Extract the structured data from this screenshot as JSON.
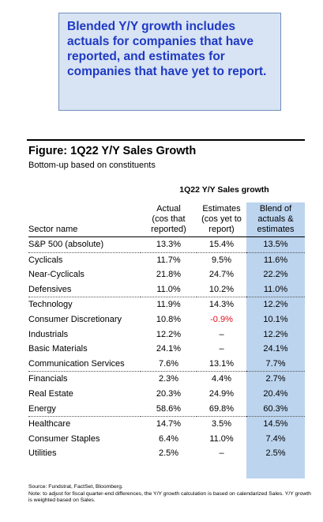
{
  "callout": {
    "text": "Blended Y/Y growth includes actuals for companies that have reported, and estimates for companies that have yet to report."
  },
  "figure": {
    "title": "Figure: 1Q22 Y/Y Sales Growth",
    "subtitle": "Bottom-up based on constituents"
  },
  "table": {
    "group_header": "1Q22 Y/Y Sales growth",
    "columns": {
      "sector": "Sector name",
      "actual": [
        "Actual",
        "(cos that",
        "reported)"
      ],
      "estimates": [
        "Estimates",
        "(cos yet to",
        "report)"
      ],
      "blend": [
        "Blend of",
        "actuals &",
        "estimates"
      ]
    },
    "rows": [
      {
        "name": "S&P 500 (absolute)",
        "actual": "13.3%",
        "estimates": "15.4%",
        "blend": "13.5%"
      },
      {
        "name": "Cyclicals",
        "actual": "11.7%",
        "estimates": "9.5%",
        "blend": "11.6%"
      },
      {
        "name": "Near-Cyclicals",
        "actual": "21.8%",
        "estimates": "24.7%",
        "blend": "22.2%"
      },
      {
        "name": "Defensives",
        "actual": "11.0%",
        "estimates": "10.2%",
        "blend": "11.0%"
      },
      {
        "name": "Technology",
        "actual": "11.9%",
        "estimates": "14.3%",
        "blend": "12.2%"
      },
      {
        "name": "Consumer Discretionary",
        "actual": "10.8%",
        "estimates": "-0.9%",
        "blend": "10.1%"
      },
      {
        "name": "Industrials",
        "actual": "12.2%",
        "estimates": "–",
        "blend": "12.2%"
      },
      {
        "name": "Basic Materials",
        "actual": "24.1%",
        "estimates": "–",
        "blend": "24.1%"
      },
      {
        "name": "Communication Services",
        "actual": "7.6%",
        "estimates": "13.1%",
        "blend": "7.7%"
      },
      {
        "name": "Financials",
        "actual": "2.3%",
        "estimates": "4.4%",
        "blend": "2.7%"
      },
      {
        "name": "Real Estate",
        "actual": "20.3%",
        "estimates": "24.9%",
        "blend": "20.4%"
      },
      {
        "name": "Energy",
        "actual": "58.6%",
        "estimates": "69.8%",
        "blend": "60.3%"
      },
      {
        "name": "Healthcare",
        "actual": "14.7%",
        "estimates": "3.5%",
        "blend": "14.5%"
      },
      {
        "name": "Consumer Staples",
        "actual": "6.4%",
        "estimates": "11.0%",
        "blend": "7.4%"
      },
      {
        "name": "Utilities",
        "actual": "2.5%",
        "estimates": "–",
        "blend": "2.5%"
      }
    ]
  },
  "footnote": {
    "source": "Source: Fundstrat, FactSet, Bloomberg.",
    "note": "Note: to adjust for fiscal quarter-end differences, the Y/Y growth calculation is based on calendarized Sales. Y/Y growth is weighted based on Sales."
  },
  "colors": {
    "callout_bg": "#d8e4f3",
    "callout_text": "#1f39c4",
    "blend_column_bg": "#bcd4ee",
    "negative": "#e0101a"
  }
}
